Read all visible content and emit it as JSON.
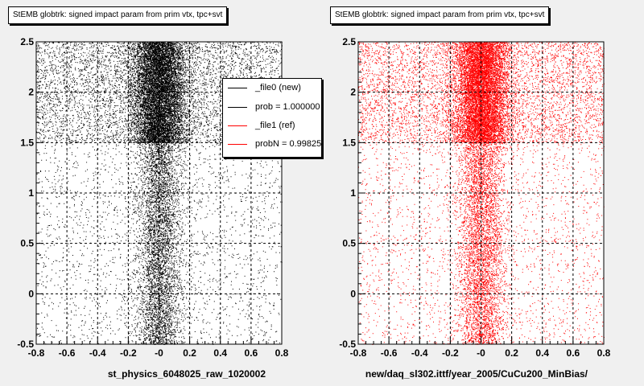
{
  "chart_data": [
    {
      "type": "scatter",
      "title": "StEMB globtrk: signed impact param from prim vtx, tpc+svt",
      "xlabel": "st_physics_6048025_raw_1020002",
      "ylabel": "",
      "xlim": [
        -0.8,
        0.8
      ],
      "ylim": [
        -0.5,
        2.5
      ],
      "xticks": [
        "-0.8",
        "-0.6",
        "-0.4",
        "-0.2",
        "-0",
        "0.2",
        "0.4",
        "0.6",
        "0.8"
      ],
      "yticks": [
        "-0.5",
        "0",
        "0.5",
        "1",
        "1.5",
        "2",
        "2.5"
      ],
      "grid": true,
      "color": "#000000",
      "density": {
        "dense_band_y": [
          1.5,
          2.5
        ],
        "core_x": [
          -0.2,
          0.2
        ]
      }
    },
    {
      "type": "scatter",
      "title": "StEMB globtrk: signed impact param from prim vtx, tpc+svt",
      "xlabel": "new/daq_sl302.ittf/year_2005/CuCu200_MinBias/",
      "ylabel": "",
      "xlim": [
        -0.8,
        0.8
      ],
      "ylim": [
        -0.5,
        2.5
      ],
      "xticks": [
        "-0.8",
        "-0.6",
        "-0.4",
        "-0.2",
        "-0",
        "0.2",
        "0.4",
        "0.6",
        "0.8"
      ],
      "yticks": [
        "-0.5",
        "0",
        "0.5",
        "1",
        "1.5",
        "2",
        "2.5"
      ],
      "grid": true,
      "color": "#ff0000",
      "density": {
        "dense_band_y": [
          1.5,
          2.5
        ],
        "core_x": [
          -0.2,
          0.2
        ]
      }
    }
  ],
  "legend": {
    "entries": [
      {
        "label": "_file0 (new)",
        "color": "#000000"
      },
      {
        "label": "prob = 1.000000",
        "color": "#000000"
      },
      {
        "label": "_file1 (ref)",
        "color": "#ff0000"
      },
      {
        "label": "probN = 0.998253",
        "color": "#ff0000"
      }
    ]
  }
}
